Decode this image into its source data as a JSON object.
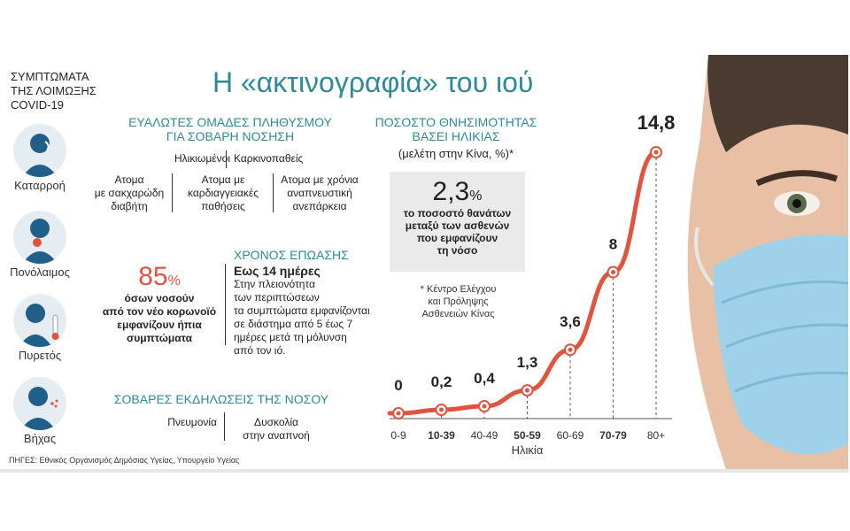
{
  "title": "Η «ακτινογραφία» του ιού",
  "symptoms": {
    "heading": "ΣΥΜΠΤΩΜΑΤΑ ΤΗΣ ΛΟΙΜΩΞΗΣ COVID-19",
    "items": [
      {
        "label": "Καταρροή",
        "icon": "runny-nose-icon"
      },
      {
        "label": "Πονόλαιμος",
        "icon": "sore-throat-icon"
      },
      {
        "label": "Πυρετός",
        "icon": "fever-icon"
      },
      {
        "label": "Βήχας",
        "icon": "cough-icon"
      }
    ]
  },
  "vulnerable": {
    "heading_line1": "ΕΥΑΛΩΤΕΣ ΟΜΑΔΕΣ ΠΛΗΘΥΣΜΟΥ",
    "heading_line2": "ΓΙΑ ΣΟΒΑΡΗ ΝΟΣΗΣΗ",
    "row1": [
      "Ηλικιωμένοι",
      "Καρκινοπαθείς"
    ],
    "row2": [
      {
        "line1": "Ατομα",
        "line2": "με σακχαρώδη",
        "line3": "διαβήτη"
      },
      {
        "line1": "Ατομα με",
        "line2": "καρδιαγγειακές",
        "line3": "παθήσεις"
      },
      {
        "line1": "Ατομα με χρόνια",
        "line2": "αναπνευστική",
        "line3": "ανεπάρκεια"
      }
    ]
  },
  "mild": {
    "percent": "85",
    "percent_sign": "%",
    "line1": "όσων νοσούν",
    "line2": "από τον νέο κορωνοϊό",
    "line3": "εμφανίζουν ήπια",
    "line4": "συμπτώματα"
  },
  "incubation": {
    "heading": "ΧΡΟΝΟΣ ΕΠΩΑΣΗΣ",
    "subheading": "Εως 14 ημέρες",
    "lines": [
      "Στην πλειονότητα",
      "των περιπτώσεων",
      "τα συμπτώματα εμφανίζονται",
      "σε διάστημα από 5 έως 7",
      "ημέρες μετά τη μόλυνση",
      "από τον ιό."
    ]
  },
  "severe": {
    "heading": "ΣΟΒΑΡΕΣ ΕΚΔΗΛΩΣΕΙΣ ΤΗΣ ΝΟΣΟΥ",
    "item1": "Πνευμονία",
    "item2_line1": "Δυσκολία",
    "item2_line2": "στην αναπνοή"
  },
  "callout": {
    "value": "2,3",
    "sign": "%",
    "line1": "το ποσοστό θανάτων",
    "line2": "μεταξύ των ασθενών",
    "line3": "που εμφανίζουν",
    "line4": "τη νόσο"
  },
  "footnote": {
    "line1": "* Κέντρο Ελέγχου",
    "line2": "και Πρόληψης",
    "line3": "Ασθενειών Κίνας"
  },
  "source": "ΠΗΓΕΣ: Εθνικός Οργανισμός Δημόσιας Υγείας, Υπουργείο Υγείας",
  "colors": {
    "accent": "#2d8a99",
    "red": "#e0533e",
    "box": "#eaeaea"
  },
  "chart_data": {
    "type": "line",
    "title_line1": "ΠΟΣΟΣΤΟ ΘΝΗΣΙΜΟΤΗΤΑΣ",
    "title_line2": "ΒΑΣΕΙ ΗΛΙΚΙΑΣ",
    "subtitle": "(μελέτη στην Κίνα, %)*",
    "xlabel": "Ηλικία",
    "categories": [
      "0-9",
      "10-39",
      "40-49",
      "50-59",
      "60-69",
      "70-79",
      "80+"
    ],
    "values": [
      0,
      0.2,
      0.4,
      1.3,
      3.6,
      8,
      14.8
    ],
    "value_labels": [
      "0",
      "0,2",
      "0,4",
      "1,3",
      "3,6",
      "8",
      "14,8"
    ],
    "bold_categories": [
      "10-39",
      "50-59",
      "70-79"
    ],
    "ylim": [
      0,
      14.8
    ],
    "grid": false,
    "line_color": "#e0533e"
  }
}
